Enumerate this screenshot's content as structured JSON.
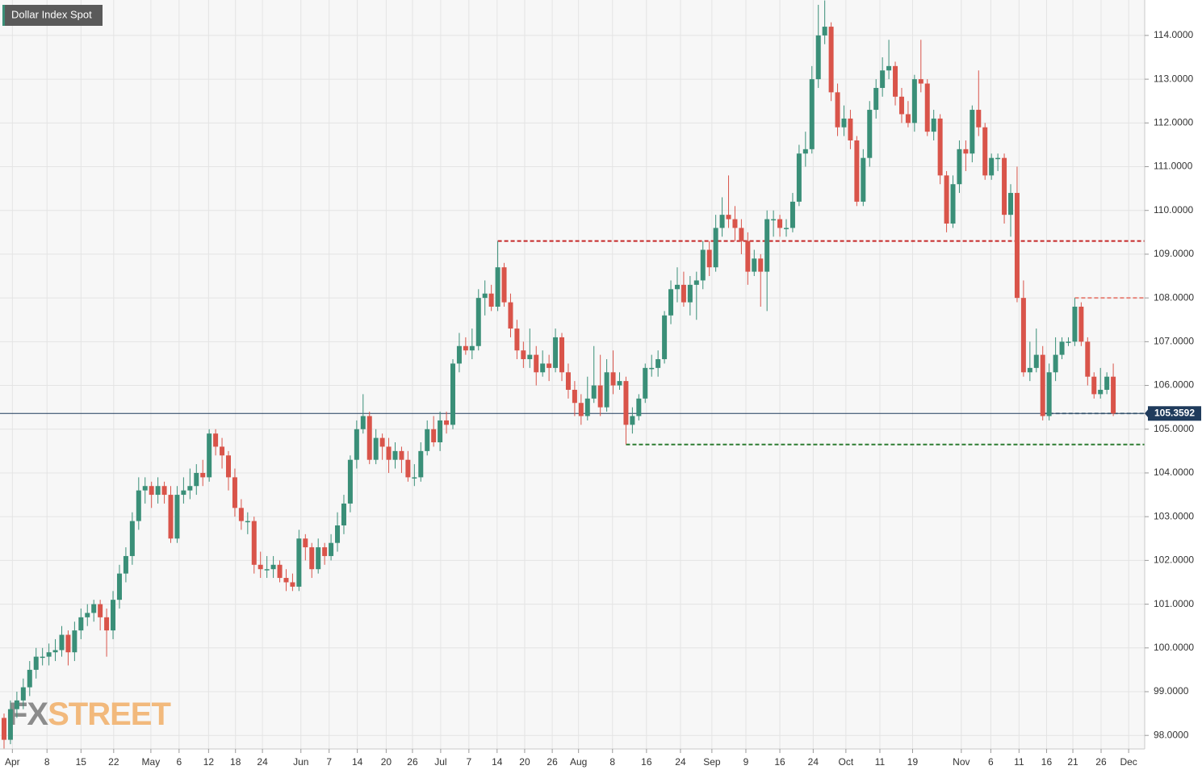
{
  "chart_data": {
    "type": "candlestick",
    "title": "Dollar Index Spot",
    "watermark": {
      "prefix": "FX",
      "suffix": "STREET"
    },
    "up_color": "#3a8f78",
    "down_color": "#d9544a",
    "grid": true,
    "xlim": [
      -0.63,
      177.9
    ],
    "ylim": [
      97.69,
      114.81
    ],
    "yticks": [
      {
        "value": 98,
        "label": "98.0000"
      },
      {
        "value": 99,
        "label": "99.0000"
      },
      {
        "value": 100,
        "label": "100.0000"
      },
      {
        "value": 101,
        "label": "101.0000"
      },
      {
        "value": 102,
        "label": "102.0000"
      },
      {
        "value": 103,
        "label": "103.0000"
      },
      {
        "value": 104,
        "label": "104.0000"
      },
      {
        "value": 105,
        "label": "105.0000"
      },
      {
        "value": 106,
        "label": "106.0000"
      },
      {
        "value": 107,
        "label": "107.0000"
      },
      {
        "value": 108,
        "label": "108.0000"
      },
      {
        "value": 109,
        "label": "109.0000"
      },
      {
        "value": 110,
        "label": "110.0000"
      },
      {
        "value": 111,
        "label": "111.0000"
      },
      {
        "value": 112,
        "label": "112.0000"
      },
      {
        "value": 113,
        "label": "113.0000"
      },
      {
        "value": 114,
        "label": "114.0000"
      }
    ],
    "xticks": [
      {
        "value": 1.3,
        "label": "Apr"
      },
      {
        "value": 6.7,
        "label": "8"
      },
      {
        "value": 12.0,
        "label": "15"
      },
      {
        "value": 17.1,
        "label": "22"
      },
      {
        "value": 22.9,
        "label": "May"
      },
      {
        "value": 27.3,
        "label": "6"
      },
      {
        "value": 31.9,
        "label": "12"
      },
      {
        "value": 36.1,
        "label": "18"
      },
      {
        "value": 40.3,
        "label": "24"
      },
      {
        "value": 46.3,
        "label": "Jun"
      },
      {
        "value": 50.7,
        "label": "7"
      },
      {
        "value": 55.1,
        "label": "14"
      },
      {
        "value": 59.6,
        "label": "20"
      },
      {
        "value": 63.7,
        "label": "26"
      },
      {
        "value": 68.1,
        "label": "Jul"
      },
      {
        "value": 72.5,
        "label": "7"
      },
      {
        "value": 76.9,
        "label": "14"
      },
      {
        "value": 81.2,
        "label": "20"
      },
      {
        "value": 85.5,
        "label": "26"
      },
      {
        "value": 89.6,
        "label": "Aug"
      },
      {
        "value": 94.9,
        "label": "8"
      },
      {
        "value": 100.2,
        "label": "16"
      },
      {
        "value": 105.5,
        "label": "24"
      },
      {
        "value": 110.4,
        "label": "Sep"
      },
      {
        "value": 115.7,
        "label": "9"
      },
      {
        "value": 121.0,
        "label": "16"
      },
      {
        "value": 126.2,
        "label": "24"
      },
      {
        "value": 131.3,
        "label": "Oct"
      },
      {
        "value": 136.6,
        "label": "11"
      },
      {
        "value": 141.7,
        "label": "19"
      },
      {
        "value": 149.3,
        "label": "Nov"
      },
      {
        "value": 153.9,
        "label": "6"
      },
      {
        "value": 158.3,
        "label": "11"
      },
      {
        "value": 162.6,
        "label": "16"
      },
      {
        "value": 166.7,
        "label": "21"
      },
      {
        "value": 171.1,
        "label": "26"
      },
      {
        "value": 175.4,
        "label": "Dec"
      }
    ],
    "last_price": 105.3592,
    "last_price_color": "#1f3b5c",
    "levels": [
      {
        "value": 109.3,
        "from": 77,
        "color": "#c62828"
      },
      {
        "value": 108.0,
        "from": 167,
        "color": "#e8887e"
      },
      {
        "value": 104.65,
        "from": 97,
        "color": "#2e7d32"
      },
      {
        "value": 105.36,
        "from": 162,
        "color": "#7f9aa3"
      }
    ],
    "ohlc": [
      [
        98.4,
        98.5,
        97.7,
        97.9
      ],
      [
        97.9,
        98.8,
        97.8,
        98.6
      ],
      [
        98.6,
        99.0,
        98.4,
        98.8
      ],
      [
        98.8,
        99.3,
        98.6,
        99.1
      ],
      [
        99.1,
        99.7,
        98.9,
        99.5
      ],
      [
        99.5,
        100.0,
        99.3,
        99.8
      ],
      [
        99.8,
        100.0,
        99.6,
        99.8
      ],
      [
        99.8,
        100.1,
        99.6,
        99.9
      ],
      [
        99.9,
        100.2,
        99.7,
        99.95
      ],
      [
        99.95,
        100.5,
        99.8,
        100.3
      ],
      [
        100.3,
        100.4,
        99.6,
        99.9
      ],
      [
        99.9,
        100.6,
        99.7,
        100.4
      ],
      [
        100.4,
        100.9,
        100.2,
        100.7
      ],
      [
        100.7,
        101.0,
        100.5,
        100.8
      ],
      [
        100.8,
        101.1,
        100.6,
        101.0
      ],
      [
        101.0,
        101.1,
        100.4,
        100.7
      ],
      [
        100.7,
        100.9,
        99.8,
        100.4
      ],
      [
        100.4,
        101.3,
        100.2,
        101.1
      ],
      [
        101.1,
        101.9,
        100.9,
        101.7
      ],
      [
        101.7,
        102.3,
        101.5,
        102.1
      ],
      [
        102.1,
        103.1,
        101.9,
        102.9
      ],
      [
        102.9,
        103.9,
        102.7,
        103.6
      ],
      [
        103.6,
        103.9,
        103.3,
        103.7
      ],
      [
        103.7,
        103.8,
        103.2,
        103.5
      ],
      [
        103.5,
        103.9,
        103.3,
        103.7
      ],
      [
        103.7,
        103.8,
        103.3,
        103.5
      ],
      [
        103.5,
        103.7,
        102.4,
        102.5
      ],
      [
        102.5,
        103.7,
        102.4,
        103.5
      ],
      [
        103.5,
        103.9,
        103.3,
        103.6
      ],
      [
        103.6,
        104.1,
        103.4,
        103.7
      ],
      [
        103.7,
        104.2,
        103.5,
        104.0
      ],
      [
        104.0,
        104.3,
        103.7,
        103.9
      ],
      [
        103.9,
        105.0,
        103.8,
        104.9
      ],
      [
        104.9,
        105.0,
        104.4,
        104.6
      ],
      [
        104.6,
        104.8,
        104.1,
        104.4
      ],
      [
        104.4,
        104.5,
        103.6,
        103.9
      ],
      [
        103.9,
        104.1,
        103.0,
        103.2
      ],
      [
        103.2,
        103.4,
        102.7,
        102.9
      ],
      [
        102.9,
        103.1,
        102.6,
        102.9
      ],
      [
        102.9,
        103.0,
        101.7,
        101.9
      ],
      [
        101.9,
        102.2,
        101.6,
        101.8
      ],
      [
        101.8,
        102.1,
        101.6,
        101.8
      ],
      [
        101.8,
        102.1,
        101.6,
        101.9
      ],
      [
        101.9,
        102.0,
        101.5,
        101.6
      ],
      [
        101.6,
        101.8,
        101.3,
        101.5
      ],
      [
        101.5,
        101.7,
        101.3,
        101.4
      ],
      [
        101.4,
        102.7,
        101.3,
        102.5
      ],
      [
        102.5,
        102.6,
        102.0,
        102.3
      ],
      [
        102.3,
        102.4,
        101.6,
        101.8
      ],
      [
        101.8,
        102.5,
        101.7,
        102.3
      ],
      [
        102.3,
        102.4,
        101.9,
        102.1
      ],
      [
        102.1,
        102.6,
        102.0,
        102.4
      ],
      [
        102.4,
        103.1,
        102.2,
        102.8
      ],
      [
        102.8,
        103.5,
        102.6,
        103.3
      ],
      [
        103.3,
        104.4,
        103.1,
        104.3
      ],
      [
        104.3,
        105.2,
        104.1,
        105.0
      ],
      [
        105.0,
        105.8,
        104.9,
        105.3
      ],
      [
        105.3,
        105.4,
        104.2,
        104.3
      ],
      [
        104.3,
        105.0,
        104.2,
        104.8
      ],
      [
        104.8,
        104.9,
        104.3,
        104.6
      ],
      [
        104.6,
        104.8,
        104.0,
        104.3
      ],
      [
        104.3,
        104.7,
        104.1,
        104.5
      ],
      [
        104.5,
        104.6,
        104.0,
        104.3
      ],
      [
        104.3,
        104.5,
        103.8,
        103.9
      ],
      [
        103.9,
        104.2,
        103.7,
        103.9
      ],
      [
        103.9,
        104.7,
        103.8,
        104.5
      ],
      [
        104.5,
        105.2,
        104.4,
        105.0
      ],
      [
        105.0,
        105.3,
        104.6,
        104.7
      ],
      [
        104.7,
        105.4,
        104.5,
        105.2
      ],
      [
        105.2,
        105.4,
        104.9,
        105.1
      ],
      [
        105.1,
        106.6,
        105.0,
        106.5
      ],
      [
        106.5,
        107.2,
        106.3,
        106.9
      ],
      [
        106.9,
        107.1,
        106.7,
        106.8
      ],
      [
        106.8,
        107.3,
        106.6,
        106.9
      ],
      [
        106.9,
        108.2,
        106.8,
        108.0
      ],
      [
        108.0,
        108.4,
        107.6,
        108.1
      ],
      [
        108.1,
        108.3,
        107.7,
        107.8
      ],
      [
        107.8,
        109.3,
        107.7,
        108.7
      ],
      [
        108.7,
        108.8,
        107.8,
        107.9
      ],
      [
        107.9,
        108.1,
        107.1,
        107.3
      ],
      [
        107.3,
        107.5,
        106.6,
        106.8
      ],
      [
        106.8,
        107.0,
        106.4,
        106.6
      ],
      [
        106.6,
        107.3,
        106.4,
        106.7
      ],
      [
        106.7,
        106.9,
        106.0,
        106.3
      ],
      [
        106.3,
        106.8,
        106.2,
        106.5
      ],
      [
        106.5,
        106.7,
        106.1,
        106.4
      ],
      [
        106.4,
        107.3,
        106.3,
        107.1
      ],
      [
        107.1,
        107.2,
        106.1,
        106.3
      ],
      [
        106.3,
        106.5,
        105.7,
        105.9
      ],
      [
        105.9,
        106.1,
        105.3,
        105.6
      ],
      [
        105.6,
        105.8,
        105.1,
        105.3
      ],
      [
        105.3,
        106.2,
        105.2,
        105.7
      ],
      [
        105.7,
        106.9,
        105.6,
        106.0
      ],
      [
        106.0,
        106.7,
        105.3,
        105.5
      ],
      [
        105.5,
        106.6,
        105.4,
        106.3
      ],
      [
        106.3,
        106.8,
        105.8,
        106.0
      ],
      [
        106.0,
        106.3,
        105.9,
        106.1
      ],
      [
        106.1,
        106.2,
        104.65,
        105.1
      ],
      [
        105.1,
        105.5,
        104.9,
        105.3
      ],
      [
        105.3,
        105.8,
        105.2,
        105.7
      ],
      [
        105.7,
        106.5,
        105.6,
        106.4
      ],
      [
        106.4,
        106.7,
        106.2,
        106.4
      ],
      [
        106.4,
        106.8,
        106.2,
        106.6
      ],
      [
        106.6,
        107.7,
        106.5,
        107.6
      ],
      [
        107.6,
        108.4,
        107.4,
        108.2
      ],
      [
        108.2,
        108.7,
        107.9,
        108.3
      ],
      [
        108.3,
        108.6,
        107.8,
        107.9
      ],
      [
        107.9,
        108.5,
        107.6,
        108.3
      ],
      [
        108.3,
        108.6,
        107.5,
        108.4
      ],
      [
        108.4,
        109.3,
        108.2,
        109.1
      ],
      [
        109.1,
        109.3,
        108.5,
        108.7
      ],
      [
        108.7,
        109.9,
        108.6,
        109.6
      ],
      [
        109.6,
        110.3,
        109.4,
        109.9
      ],
      [
        109.9,
        110.8,
        109.6,
        109.8
      ],
      [
        109.8,
        110.1,
        109.3,
        109.6
      ],
      [
        109.6,
        109.8,
        109.0,
        109.3
      ],
      [
        109.3,
        109.5,
        108.3,
        108.6
      ],
      [
        108.6,
        109.1,
        108.5,
        108.9
      ],
      [
        108.9,
        109.0,
        107.8,
        108.6
      ],
      [
        108.6,
        110.0,
        107.7,
        109.8
      ],
      [
        109.8,
        110.0,
        109.4,
        109.8
      ],
      [
        109.8,
        109.9,
        109.4,
        109.6
      ],
      [
        109.6,
        109.8,
        109.4,
        109.6
      ],
      [
        109.6,
        110.4,
        109.5,
        110.2
      ],
      [
        110.2,
        111.5,
        110.1,
        111.3
      ],
      [
        111.3,
        111.8,
        111.0,
        111.4
      ],
      [
        111.4,
        113.3,
        111.3,
        113.0
      ],
      [
        113.0,
        114.7,
        112.8,
        114.0
      ],
      [
        114.0,
        114.8,
        113.8,
        114.2
      ],
      [
        114.2,
        114.3,
        112.5,
        112.7
      ],
      [
        112.7,
        112.9,
        111.7,
        111.9
      ],
      [
        111.9,
        112.4,
        111.7,
        112.1
      ],
      [
        112.1,
        112.3,
        111.4,
        111.6
      ],
      [
        111.6,
        111.7,
        110.1,
        110.2
      ],
      [
        110.2,
        111.4,
        110.1,
        111.2
      ],
      [
        111.2,
        112.5,
        111.0,
        112.3
      ],
      [
        112.3,
        113.0,
        112.1,
        112.8
      ],
      [
        112.8,
        113.5,
        112.6,
        113.2
      ],
      [
        113.2,
        113.9,
        113.0,
        113.3
      ],
      [
        113.3,
        113.4,
        112.4,
        112.6
      ],
      [
        112.6,
        112.8,
        112.0,
        112.2
      ],
      [
        112.2,
        112.5,
        111.9,
        112.0
      ],
      [
        112.0,
        113.1,
        111.8,
        113.0
      ],
      [
        113.0,
        113.9,
        112.7,
        112.9
      ],
      [
        112.9,
        113.0,
        111.7,
        111.8
      ],
      [
        111.8,
        112.3,
        111.6,
        112.1
      ],
      [
        112.1,
        112.2,
        110.6,
        110.8
      ],
      [
        110.8,
        110.9,
        109.5,
        109.7
      ],
      [
        109.7,
        110.8,
        109.6,
        110.6
      ],
      [
        110.6,
        111.6,
        110.4,
        111.4
      ],
      [
        111.4,
        111.6,
        110.9,
        111.3
      ],
      [
        111.3,
        112.4,
        111.1,
        112.3
      ],
      [
        112.3,
        113.2,
        111.7,
        111.9
      ],
      [
        111.9,
        112.0,
        110.7,
        110.8
      ],
      [
        110.8,
        111.3,
        110.7,
        111.2
      ],
      [
        111.2,
        111.3,
        110.9,
        111.2
      ],
      [
        111.2,
        111.3,
        109.7,
        109.9
      ],
      [
        109.9,
        110.6,
        109.4,
        110.4
      ],
      [
        110.4,
        111.0,
        107.9,
        108.0
      ],
      [
        108.0,
        108.4,
        106.2,
        106.3
      ],
      [
        106.3,
        107.0,
        106.1,
        106.4
      ],
      [
        106.4,
        107.3,
        106.3,
        106.7
      ],
      [
        106.7,
        106.9,
        105.2,
        105.3
      ],
      [
        105.3,
        106.5,
        105.2,
        106.3
      ],
      [
        106.3,
        107.1,
        106.1,
        106.7
      ],
      [
        106.7,
        107.1,
        106.6,
        107.0
      ],
      [
        107.0,
        107.1,
        106.9,
        107.0
      ],
      [
        107.0,
        108.0,
        106.9,
        107.8
      ],
      [
        107.8,
        107.9,
        106.9,
        107.0
      ],
      [
        107.0,
        107.1,
        106.0,
        106.2
      ],
      [
        106.2,
        106.3,
        105.7,
        105.8
      ],
      [
        105.8,
        106.4,
        105.7,
        105.9
      ],
      [
        105.9,
        106.3,
        105.8,
        106.2
      ],
      [
        106.2,
        106.5,
        105.3,
        105.3592
      ]
    ]
  }
}
